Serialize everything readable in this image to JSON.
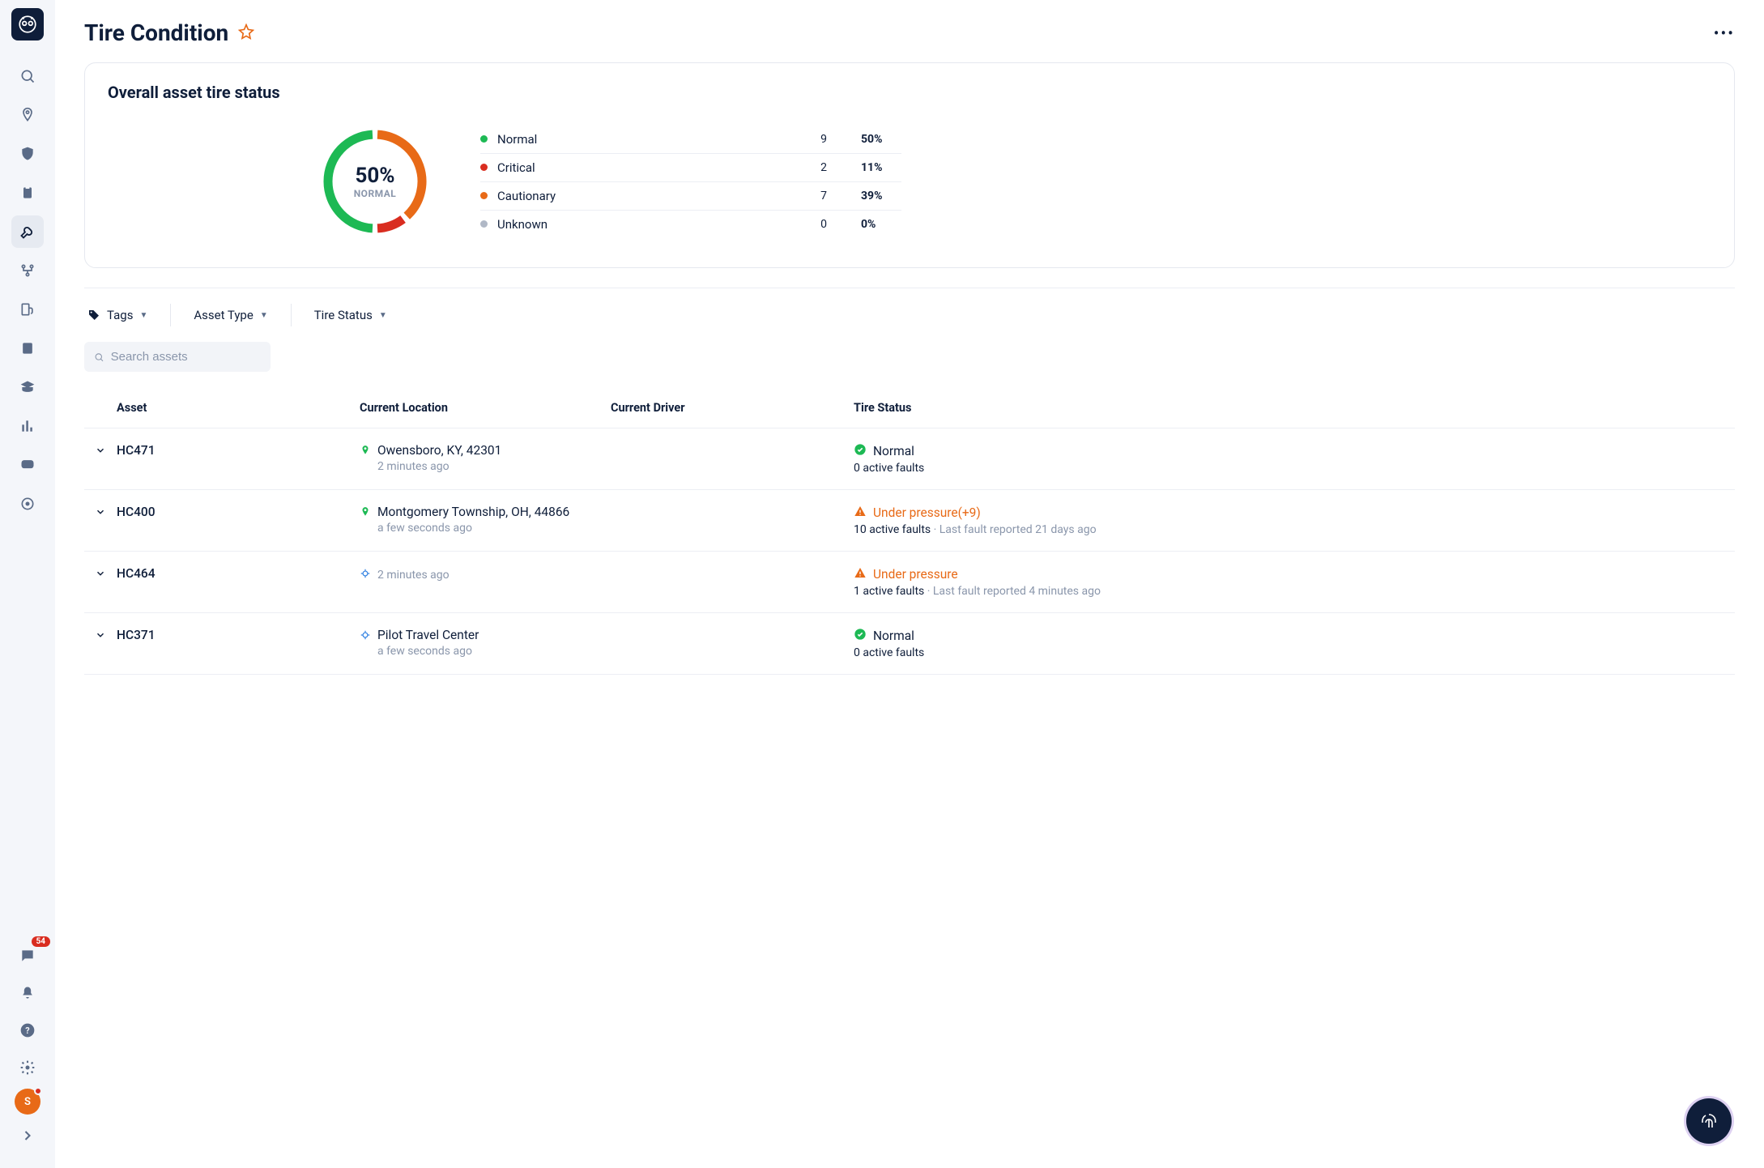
{
  "sidebar": {
    "message_badge": "54",
    "avatar_initial": "S"
  },
  "header": {
    "title": "Tire Condition"
  },
  "overview": {
    "card_title": "Overall asset tire status",
    "donut": {
      "center_pct": "50%",
      "center_label": "NORMAL",
      "segments": [
        {
          "color": "#1db954",
          "pct": 50
        },
        {
          "color": "#e86a17",
          "pct": 39
        },
        {
          "color": "#d92d20",
          "pct": 11
        },
        {
          "color": "#b0b8c6",
          "pct": 0
        }
      ],
      "stroke_width": 11
    },
    "legend": [
      {
        "label": "Normal",
        "count": "9",
        "pct": "50%",
        "color": "#1db954"
      },
      {
        "label": "Critical",
        "count": "2",
        "pct": "11%",
        "color": "#d92d20"
      },
      {
        "label": "Cautionary",
        "count": "7",
        "pct": "39%",
        "color": "#e86a17"
      },
      {
        "label": "Unknown",
        "count": "0",
        "pct": "0%",
        "color": "#b0b8c6"
      }
    ]
  },
  "filters": {
    "tags_label": "Tags",
    "asset_type_label": "Asset Type",
    "tire_status_label": "Tire Status",
    "search_placeholder": "Search assets"
  },
  "table": {
    "columns": {
      "asset": "Asset",
      "location": "Current Location",
      "driver": "Current Driver",
      "status": "Tire Status"
    },
    "rows": [
      {
        "asset": "HC471",
        "location": "Owensboro, KY, 42301",
        "loc_time": "2 minutes ago",
        "pin": "green",
        "driver": "",
        "status_type": "ok",
        "status_label": "Normal",
        "status_sub_strong": "0 active faults",
        "status_sub_muted": ""
      },
      {
        "asset": "HC400",
        "location": "Montgomery Township, OH, 44866",
        "loc_time": "a few seconds ago",
        "pin": "green",
        "driver": "",
        "status_type": "warn",
        "status_label": "Under pressure(+9)",
        "status_sub_strong": "10 active faults",
        "status_sub_muted": " · Last fault reported 21 days ago"
      },
      {
        "asset": "HC464",
        "location": "",
        "loc_time": "2 minutes ago",
        "pin": "blue",
        "driver": "",
        "status_type": "warn",
        "status_label": "Under pressure",
        "status_sub_strong": "1 active faults",
        "status_sub_muted": " · Last fault reported 4 minutes ago"
      },
      {
        "asset": "HC371",
        "location": "Pilot Travel Center",
        "loc_time": "a few seconds ago",
        "pin": "blue",
        "driver": "",
        "status_type": "ok",
        "status_label": "Normal",
        "status_sub_strong": "0 active faults",
        "status_sub_muted": ""
      }
    ]
  }
}
